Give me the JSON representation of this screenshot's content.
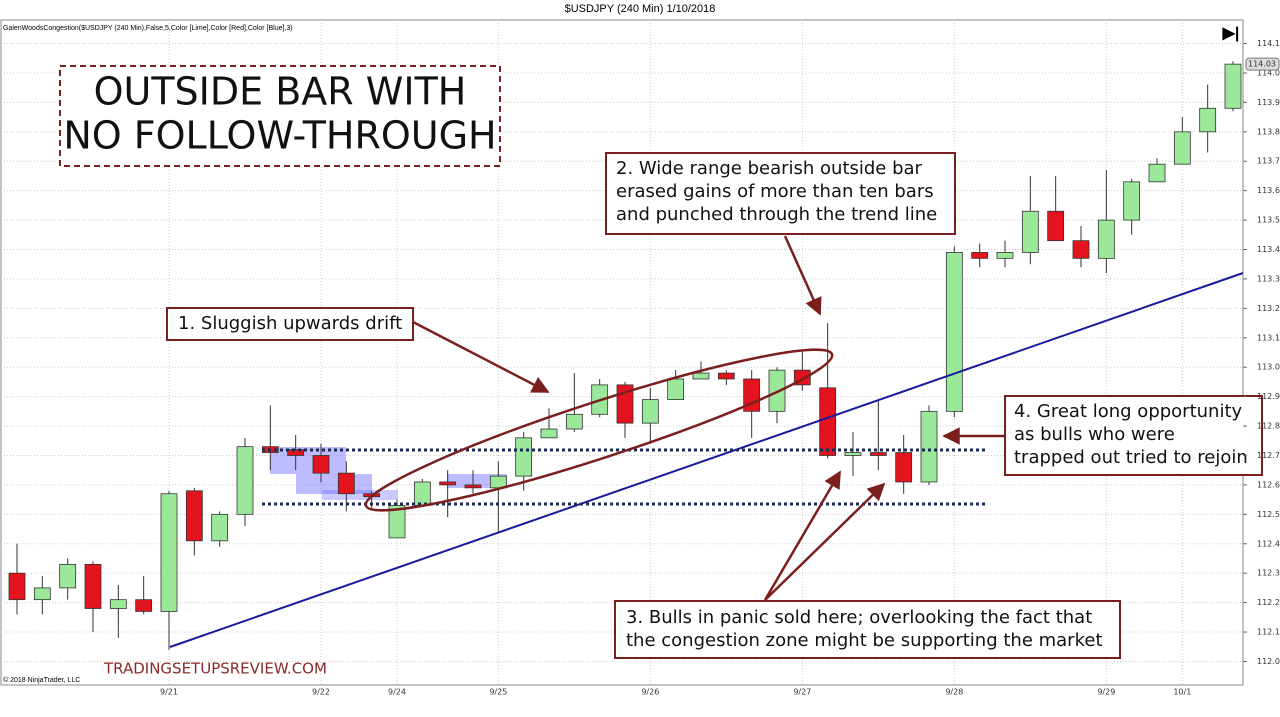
{
  "chart_data": {
    "type": "candlestick",
    "title": "$USDJPY (240 Min)  1/10/2018",
    "subtitle": "GalenWoodsCongestion($USDJPY (240 Min),False,5,Color [Lime],Color [Red],Color [Blue],3)",
    "copyright": "© 2018 NinjaTrader, LLC",
    "watermark": "TRADINGSETUPSREVIEW.COM",
    "headline": [
      "OUTSIDE BAR WITH",
      "NO FOLLOW-THROUGH"
    ],
    "annotations": [
      [
        "1. Sluggish upwards drift"
      ],
      [
        "2. Wide range bearish outside bar",
        "erased gains of more than ten bars",
        "and punched through the trend line"
      ],
      [
        "3. Bulls in panic sold here; overlooking the fact that",
        "the congestion zone might be supporting the market"
      ],
      [
        "4. Great long opportunity",
        "as bulls who were",
        "trapped out tried to rejoin"
      ]
    ],
    "categories": [
      null,
      null,
      null,
      null,
      null,
      null,
      "9/21",
      null,
      null,
      null,
      null,
      null,
      "9/22",
      null,
      null,
      "9/24",
      null,
      null,
      null,
      "9/25",
      null,
      null,
      null,
      null,
      null,
      "9/26",
      null,
      null,
      null,
      null,
      null,
      "9/27",
      null,
      null,
      null,
      null,
      null,
      "9/28",
      null,
      null,
      null,
      null,
      null,
      "9/29",
      null,
      null,
      "10/1",
      null,
      null
    ],
    "open": [
      112.3,
      112.21,
      112.25,
      112.33,
      112.18,
      112.21,
      112.17,
      112.58,
      112.41,
      112.5,
      112.73,
      112.72,
      112.7,
      112.64,
      112.57,
      112.42,
      112.53,
      112.61,
      112.6,
      112.59,
      112.63,
      112.76,
      112.79,
      112.84,
      112.94,
      112.81,
      112.89,
      112.96,
      112.98,
      112.96,
      112.85,
      112.99,
      112.93,
      112.7,
      112.71,
      112.71,
      112.61,
      112.85,
      113.39,
      113.37,
      113.39,
      113.53,
      113.43,
      113.37,
      113.5,
      113.63,
      113.69,
      113.8,
      113.88
    ],
    "high": [
      112.4,
      112.29,
      112.35,
      112.34,
      112.26,
      112.29,
      112.58,
      112.59,
      112.51,
      112.76,
      112.87,
      112.77,
      112.74,
      112.68,
      112.58,
      112.55,
      112.62,
      112.65,
      112.65,
      112.68,
      112.78,
      112.86,
      112.98,
      112.96,
      112.95,
      112.93,
      112.99,
      113.02,
      112.99,
      112.99,
      113.0,
      113.06,
      113.15,
      112.78,
      112.89,
      112.77,
      112.87,
      113.41,
      113.42,
      113.43,
      113.65,
      113.65,
      113.48,
      113.67,
      113.64,
      113.71,
      113.85,
      113.96,
      114.04
    ],
    "low": [
      112.16,
      112.16,
      112.21,
      112.1,
      112.08,
      112.16,
      112.04,
      112.36,
      112.39,
      112.46,
      112.65,
      112.65,
      112.61,
      112.51,
      112.52,
      112.42,
      112.53,
      112.49,
      112.57,
      112.44,
      112.58,
      112.76,
      112.78,
      112.83,
      112.76,
      112.74,
      112.89,
      112.96,
      112.94,
      112.76,
      112.81,
      112.92,
      112.69,
      112.63,
      112.65,
      112.57,
      112.6,
      112.83,
      113.34,
      113.34,
      113.35,
      113.43,
      113.34,
      113.32,
      113.45,
      113.63,
      113.69,
      113.73,
      113.87
    ],
    "close": [
      112.21,
      112.25,
      112.33,
      112.18,
      112.21,
      112.17,
      112.57,
      112.41,
      112.5,
      112.73,
      112.71,
      112.7,
      112.64,
      112.57,
      112.56,
      112.53,
      112.61,
      112.6,
      112.59,
      112.63,
      112.76,
      112.79,
      112.84,
      112.94,
      112.81,
      112.89,
      112.96,
      112.98,
      112.96,
      112.85,
      112.99,
      112.94,
      112.7,
      112.71,
      112.7,
      112.61,
      112.85,
      113.39,
      113.37,
      113.39,
      113.53,
      113.43,
      113.37,
      113.5,
      113.63,
      113.69,
      113.8,
      113.88,
      114.03
    ],
    "up_color": "#9be89b",
    "down_color": "#e3141d",
    "last_price": 114.03,
    "ylim": [
      111.92,
      114.18
    ],
    "yticks": [
      {
        "value": 112.0,
        "label": "112.00"
      },
      {
        "value": 112.1,
        "label": "112.10"
      },
      {
        "value": 112.2,
        "label": "112.20"
      },
      {
        "value": 112.3,
        "label": "112.30"
      },
      {
        "value": 112.4,
        "label": "112.40"
      },
      {
        "value": 112.5,
        "label": "112.50"
      },
      {
        "value": 112.6,
        "label": "112.60"
      },
      {
        "value": 112.7,
        "label": "112.70"
      },
      {
        "value": 112.8,
        "label": "112.80"
      },
      {
        "value": 112.9,
        "label": "112.90"
      },
      {
        "value": 113.0,
        "label": "113.00"
      },
      {
        "value": 113.1,
        "label": "113.10"
      },
      {
        "value": 113.2,
        "label": "113.20"
      },
      {
        "value": 113.3,
        "label": "113.30"
      },
      {
        "value": 113.4,
        "label": "113.40"
      },
      {
        "value": 113.5,
        "label": "113.50"
      },
      {
        "value": 113.6,
        "label": "113.60"
      },
      {
        "value": 113.7,
        "label": "113.70"
      },
      {
        "value": 113.8,
        "label": "113.80"
      },
      {
        "value": 113.9,
        "label": "113.90"
      },
      {
        "value": 114.0,
        "label": "114.00"
      },
      {
        "value": 114.1,
        "label": "114.10"
      }
    ],
    "grid": true
  }
}
